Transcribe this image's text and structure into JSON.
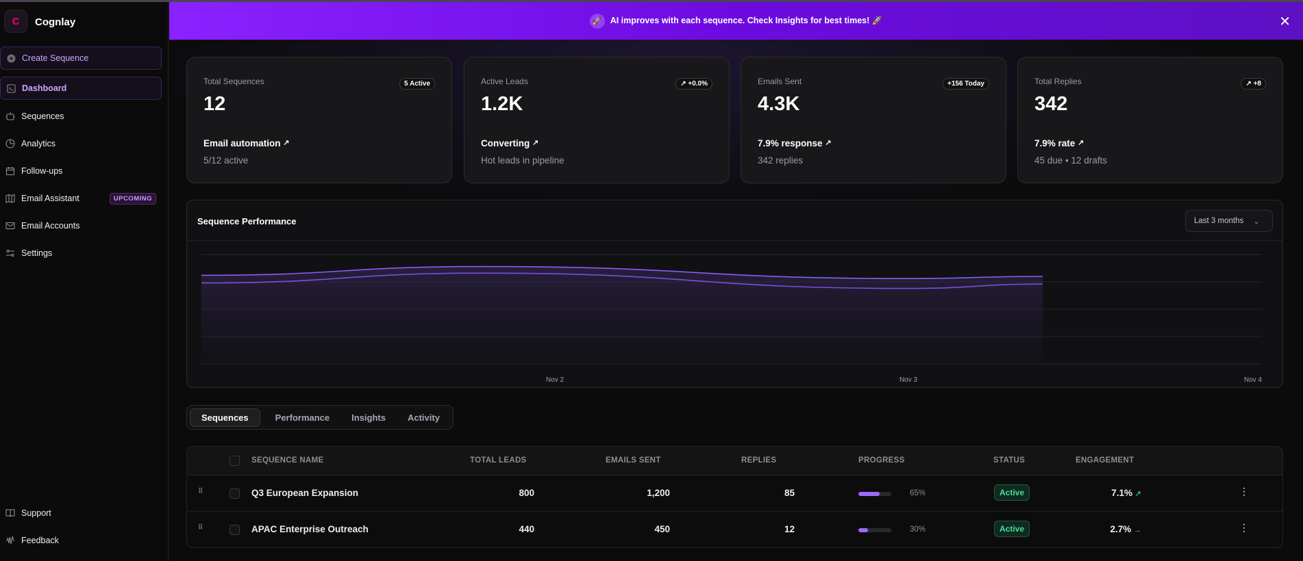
{
  "app": {
    "name": "Cognlay",
    "logo_letter": "C"
  },
  "sidebar": {
    "create_label": "Create Sequence",
    "items": [
      {
        "label": "Dashboard",
        "icon": "terminal-icon",
        "active": true
      },
      {
        "label": "Sequences",
        "icon": "bot-icon"
      },
      {
        "label": "Analytics",
        "icon": "pie-chart-icon"
      },
      {
        "label": "Follow-ups",
        "icon": "calendar-icon"
      },
      {
        "label": "Email Assistant",
        "icon": "map-icon",
        "badge": "UPCOMING"
      },
      {
        "label": "Email Accounts",
        "icon": "mail-icon"
      },
      {
        "label": "Settings",
        "icon": "sliders-icon"
      }
    ],
    "footer": [
      {
        "label": "Support",
        "icon": "book-icon"
      },
      {
        "label": "Feedback",
        "icon": "audio-wave-icon"
      }
    ]
  },
  "banner": {
    "text": "AI improves with each sequence. Check Insights for best times! 🚀"
  },
  "stats": [
    {
      "label": "Total Sequences",
      "pill": "5 Active",
      "value": "12",
      "subtitle": "Email automation",
      "detail": "5/12 active"
    },
    {
      "label": "Active Leads",
      "pill": "↗ +0.0%",
      "value": "1.2K",
      "subtitle": "Converting",
      "detail": "Hot leads in pipeline"
    },
    {
      "label": "Emails Sent",
      "pill": "+156 Today",
      "value": "4.3K",
      "subtitle": "7.9% response",
      "detail": "342 replies"
    },
    {
      "label": "Total Replies",
      "pill": "↗ +8",
      "value": "342",
      "subtitle": "7.9% rate",
      "detail": "45 due • 12 drafts"
    }
  ],
  "chart": {
    "title": "Sequence Performance",
    "range_select": "Last 3 months"
  },
  "chart_data": {
    "type": "area",
    "title": "Sequence Performance",
    "x_ticks": [
      "Nov 2",
      "Nov 3",
      "Nov 4"
    ],
    "x_tick_values": [
      2,
      3,
      4
    ],
    "xlim": [
      1,
      4
    ],
    "ylim": [
      0,
      100
    ],
    "grid": true,
    "x": [
      1,
      1.8,
      3,
      3.38
    ],
    "series": [
      {
        "values": [
          81,
          89,
          78,
          80
        ],
        "color": "#8b5cf6"
      },
      {
        "values": [
          74,
          83,
          69,
          73
        ],
        "color": "#7c4ddc"
      }
    ]
  },
  "tabs": [
    {
      "label": "Sequences",
      "active": true
    },
    {
      "label": "Performance"
    },
    {
      "label": "Insights"
    },
    {
      "label": "Activity"
    }
  ],
  "table": {
    "headers": [
      "SEQUENCE NAME",
      "TOTAL LEADS",
      "EMAILS SENT",
      "REPLIES",
      "PROGRESS",
      "STATUS",
      "ENGAGEMENT"
    ],
    "rows": [
      {
        "name": "Q3 European Expansion",
        "leads": "800",
        "sent": "1,200",
        "replies": "85",
        "progress": 65,
        "progress_label": "65%",
        "status": "Active",
        "engagement": "7.1%",
        "trend": "↗",
        "trend_color": "#22c55e"
      },
      {
        "name": "APAC Enterprise Outreach",
        "leads": "440",
        "sent": "450",
        "replies": "12",
        "progress": 30,
        "progress_label": "30%",
        "status": "Active",
        "engagement": "2.7%",
        "trend": "→",
        "trend_color": "#9a9a9a"
      }
    ]
  }
}
